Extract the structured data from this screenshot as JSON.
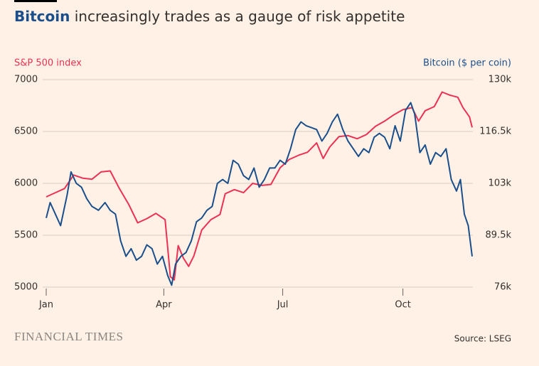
{
  "chart_data": {
    "type": "line",
    "title": "Bitcoin increasingly trades as a gauge of risk appetite",
    "y_label": "S&P 500 index",
    "y2_label": "Bitcoin ($ per coin)",
    "source": "Source: LSEG",
    "brand": "FINANCIAL TIMES",
    "xlim": [
      1,
      327
    ],
    "xticks": [
      {
        "value": 1,
        "label": "Jan"
      },
      {
        "value": 91,
        "label": "Apr"
      },
      {
        "value": 182,
        "label": "Jul"
      },
      {
        "value": 274,
        "label": "Oct"
      }
    ],
    "ylim": [
      5000,
      7000
    ],
    "yticks": [
      5000,
      5500,
      6000,
      6500,
      7000
    ],
    "y2lim": [
      76000,
      130000
    ],
    "y2ticks": [
      {
        "value": 76000,
        "label": "76k"
      },
      {
        "value": 89500,
        "label": "89.5k"
      },
      {
        "value": 103000,
        "label": "103k"
      },
      {
        "value": 116500,
        "label": "116.5k"
      },
      {
        "value": 130000,
        "label": "130k"
      }
    ],
    "grid": true,
    "series": [
      {
        "name": "S&P 500 index",
        "color": "#eb3154",
        "x": [
          1,
          8,
          15,
          22,
          29,
          36,
          43,
          50,
          57,
          64,
          71,
          78,
          85,
          92,
          96,
          99,
          102,
          106,
          110,
          114,
          120,
          127,
          134,
          138,
          145,
          152,
          159,
          166,
          173,
          180,
          187,
          194,
          201,
          208,
          213,
          218,
          225,
          232,
          239,
          246,
          253,
          260,
          267,
          274,
          281,
          286,
          291,
          298,
          304,
          310,
          316,
          320,
          325,
          327
        ],
        "values": [
          5870,
          5910,
          5950,
          6080,
          6050,
          6040,
          6110,
          6120,
          5950,
          5800,
          5620,
          5660,
          5710,
          5650,
          5100,
          5070,
          5400,
          5280,
          5200,
          5300,
          5550,
          5650,
          5700,
          5900,
          5940,
          5910,
          6000,
          5980,
          5990,
          6150,
          6230,
          6270,
          6300,
          6390,
          6240,
          6350,
          6450,
          6460,
          6430,
          6470,
          6550,
          6600,
          6660,
          6710,
          6730,
          6600,
          6700,
          6740,
          6880,
          6850,
          6830,
          6730,
          6640,
          6540
        ]
      },
      {
        "name": "Bitcoin",
        "color": "#1a4f8b",
        "axis": "y2",
        "x": [
          1,
          4,
          8,
          12,
          17,
          20,
          24,
          28,
          32,
          36,
          41,
          46,
          50,
          54,
          58,
          62,
          66,
          70,
          74,
          78,
          82,
          86,
          90,
          94,
          97,
          100,
          104,
          108,
          112,
          116,
          120,
          124,
          128,
          132,
          136,
          140,
          144,
          148,
          152,
          156,
          160,
          164,
          168,
          172,
          176,
          180,
          184,
          188,
          192,
          196,
          200,
          204,
          208,
          212,
          216,
          220,
          224,
          228,
          232,
          236,
          240,
          244,
          248,
          252,
          256,
          260,
          264,
          268,
          272,
          276,
          280,
          283,
          287,
          291,
          295,
          299,
          303,
          307,
          311,
          315,
          318,
          321,
          324,
          327
        ],
        "values": [
          94000,
          98000,
          95000,
          92000,
          100000,
          106000,
          103000,
          102000,
          99000,
          97000,
          96000,
          98000,
          96000,
          95000,
          88000,
          84000,
          86000,
          83000,
          84000,
          87000,
          86000,
          82000,
          84000,
          79000,
          76500,
          82000,
          84000,
          85000,
          88000,
          93000,
          94000,
          96000,
          97000,
          103000,
          104000,
          103000,
          109000,
          108000,
          105000,
          104000,
          107000,
          102000,
          104000,
          107000,
          107000,
          109000,
          108000,
          112000,
          117000,
          119000,
          118000,
          117500,
          117000,
          114000,
          116000,
          119000,
          121000,
          117000,
          114000,
          112000,
          110000,
          112000,
          111000,
          115000,
          116000,
          115000,
          112000,
          118000,
          114000,
          122000,
          124000,
          121000,
          111000,
          113000,
          108000,
          111000,
          110000,
          112000,
          104000,
          101000,
          104000,
          95000,
          92000,
          84000
        ]
      }
    ]
  }
}
